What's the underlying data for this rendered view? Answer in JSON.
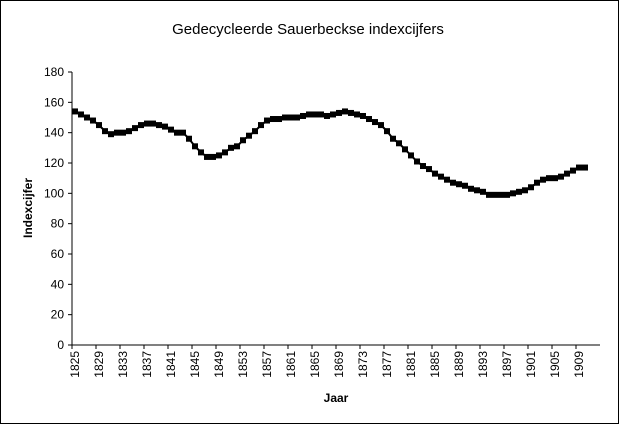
{
  "chart_data": {
    "type": "line",
    "title": "Gedecycleerde Sauerbeckse indexcijfers",
    "x_label": "Jaar",
    "y_label": "Indexcijfer",
    "categories": [
      "1825",
      null,
      null,
      null,
      "1829",
      null,
      null,
      null,
      "1833",
      null,
      null,
      null,
      "1837",
      null,
      null,
      null,
      "1841",
      null,
      null,
      null,
      "1845",
      null,
      null,
      null,
      "1849",
      null,
      null,
      null,
      "1853",
      null,
      null,
      null,
      "1857",
      null,
      null,
      null,
      "1861",
      null,
      null,
      null,
      "1865",
      null,
      null,
      null,
      "1869",
      null,
      null,
      null,
      "1873",
      null,
      null,
      null,
      "1877",
      null,
      null,
      null,
      "1881",
      null,
      null,
      null,
      "1885",
      null,
      null,
      null,
      "1889",
      null,
      null,
      null,
      "1893",
      null,
      null,
      null,
      "1897",
      null,
      null,
      null,
      "1901",
      null,
      null,
      null,
      "1905",
      null,
      null,
      null,
      "1909",
      null,
      null,
      null
    ],
    "series": [
      {
        "name": "Indexcijfer",
        "color": "#000000",
        "values": [
          154,
          152,
          150,
          148,
          145,
          141,
          139,
          140,
          140,
          141,
          143,
          145,
          146,
          146,
          145,
          144,
          142,
          140,
          140,
          136,
          131,
          127,
          124,
          124,
          125,
          127,
          130,
          131,
          135,
          138,
          141,
          145,
          148,
          149,
          149,
          150,
          150,
          150,
          151,
          152,
          152,
          152,
          151,
          152,
          153,
          154,
          153,
          152,
          151,
          149,
          147,
          145,
          141,
          136,
          133,
          129,
          125,
          121,
          118,
          116,
          113,
          111,
          109,
          107,
          106,
          105,
          103,
          102,
          101,
          99,
          99,
          99,
          99,
          100,
          101,
          102,
          104,
          107,
          109,
          110,
          110,
          111,
          113,
          115,
          117,
          117,
          null,
          null
        ]
      }
    ],
    "ylim": [
      0,
      180
    ],
    "yticks": [
      0,
      20,
      40,
      60,
      80,
      100,
      120,
      140,
      160,
      180
    ],
    "grid": false
  }
}
